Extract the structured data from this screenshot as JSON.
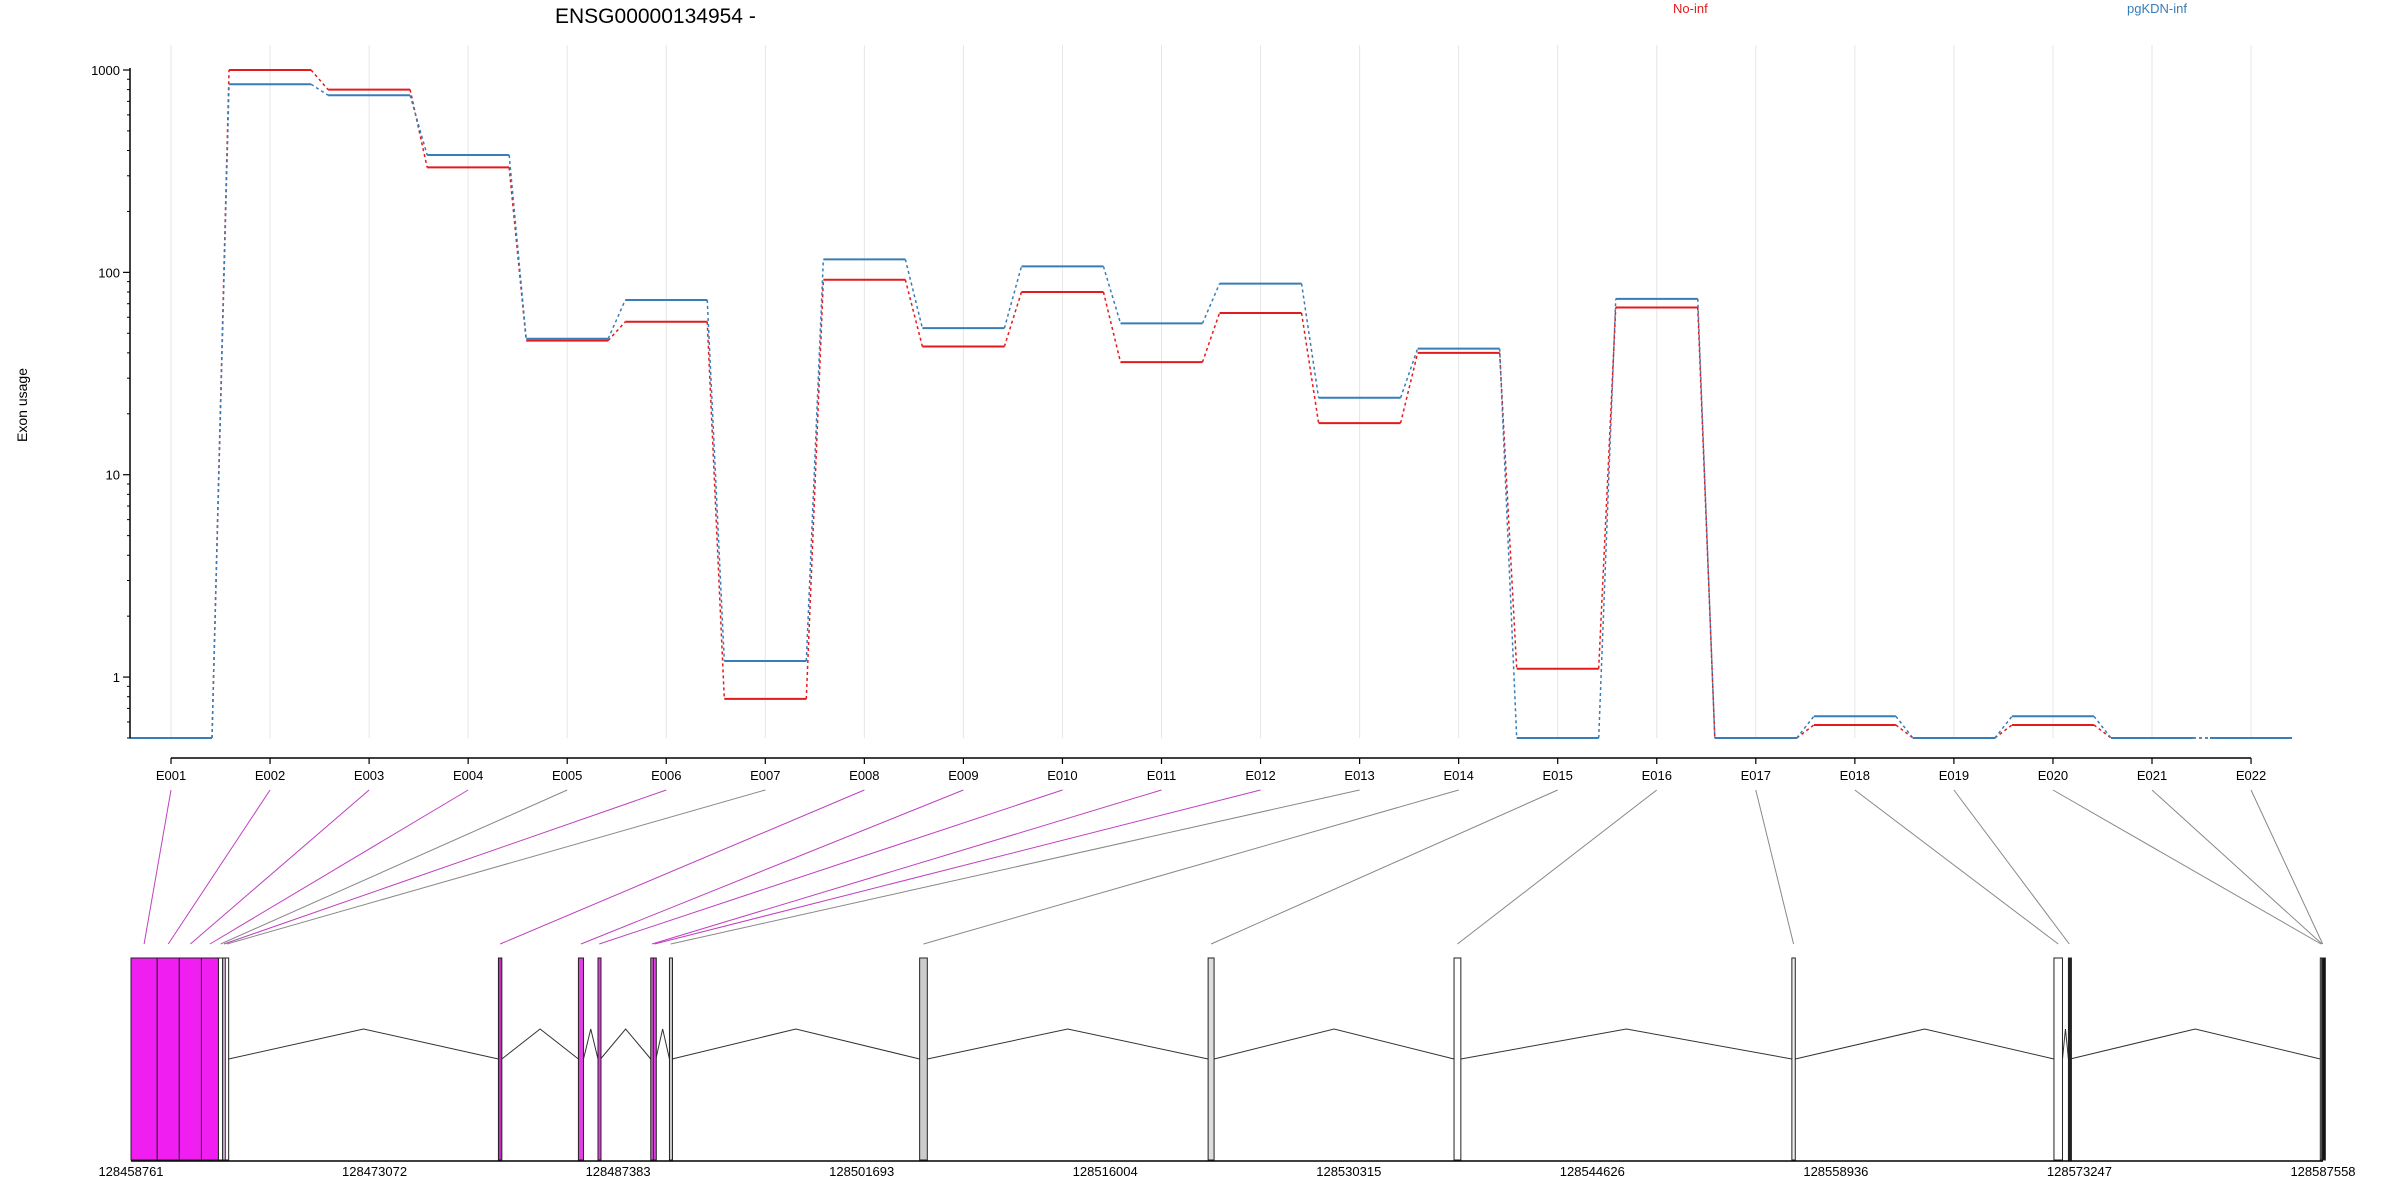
{
  "chart_data": {
    "type": "line",
    "title": "ENSG00000134954 -",
    "ylabel": "Exon usage",
    "y_scale": "log",
    "ylim": [
      0.5,
      1000
    ],
    "y_ticks": [
      "1000",
      "100",
      "10",
      "1"
    ],
    "categories": [
      "E001",
      "E002",
      "E003",
      "E004",
      "E005",
      "E006",
      "E007",
      "E008",
      "E009",
      "E010",
      "E011",
      "E012",
      "E013",
      "E014",
      "E015",
      "E016",
      "E017",
      "E018",
      "E019",
      "E020",
      "E021",
      "E022"
    ],
    "series": [
      {
        "name": "No-inf",
        "color": "#e41a1c",
        "values": [
          0.5,
          1000,
          800,
          330,
          46,
          57,
          0.78,
          92,
          43,
          80,
          36,
          63,
          18,
          40,
          1.1,
          67,
          0.5,
          0.58,
          0.5,
          0.58,
          0.5,
          0.5
        ]
      },
      {
        "name": "pgKDN-inf",
        "color": "#377eb8",
        "values": [
          0.5,
          850,
          750,
          380,
          47,
          73,
          1.2,
          116,
          53,
          107,
          56,
          88,
          24,
          42,
          0.5,
          74,
          0.5,
          0.64,
          0.5,
          0.64,
          0.5,
          0.5
        ]
      }
    ],
    "genomic_axis": {
      "tick_labels": [
        "128458761",
        "128473072",
        "128487383",
        "128501693",
        "128516004",
        "128530315",
        "128544626",
        "128558936",
        "128573247",
        "128587558"
      ],
      "range": [
        128458761,
        128587558
      ]
    },
    "gene_model": {
      "exons": [
        {
          "id": "E001",
          "start": 128458761,
          "end": 128460300,
          "fill": "#f01ef0"
        },
        {
          "id": "E002",
          "start": 128460300,
          "end": 128461600,
          "fill": "#f01ef0"
        },
        {
          "id": "E003",
          "start": 128461600,
          "end": 128462900,
          "fill": "#f01ef0"
        },
        {
          "id": "E004",
          "start": 128462900,
          "end": 128463900,
          "fill": "#f01ef0"
        },
        {
          "id": "E005",
          "start": 128463900,
          "end": 128464150,
          "fill": "#ffffff"
        },
        {
          "id": "E006",
          "start": 128464150,
          "end": 128464300,
          "fill": "#ebc4eb"
        },
        {
          "id": "E007",
          "start": 128464300,
          "end": 128464500,
          "fill": "#ffffff"
        },
        {
          "id": "E008",
          "start": 128480350,
          "end": 128480550,
          "fill": "#c030c0"
        },
        {
          "id": "E009",
          "start": 128485050,
          "end": 128485350,
          "fill": "#e040e0"
        },
        {
          "id": "E010",
          "start": 128486200,
          "end": 128486350,
          "fill": "#e040e0"
        },
        {
          "id": "E011",
          "start": 128489300,
          "end": 128489450,
          "fill": "#d060d0"
        },
        {
          "id": "E012",
          "start": 128489450,
          "end": 128489600,
          "fill": "#e040e0"
        },
        {
          "id": "E013",
          "start": 128490400,
          "end": 128490550,
          "fill": "#cccccc"
        },
        {
          "id": "E014",
          "start": 128505100,
          "end": 128505550,
          "fill": "#cccccc"
        },
        {
          "id": "E015",
          "start": 128522050,
          "end": 128522400,
          "fill": "#dddddd"
        },
        {
          "id": "E016",
          "start": 128536500,
          "end": 128536900,
          "fill": "#ffffff"
        },
        {
          "id": "E017",
          "start": 128556350,
          "end": 128556550,
          "fill": "#eeeeee"
        },
        {
          "id": "E018",
          "start": 128571750,
          "end": 128572250,
          "fill": "#ffffff"
        },
        {
          "id": "E019",
          "start": 128572600,
          "end": 128572700,
          "fill": "#222222"
        },
        {
          "id": "E020",
          "start": 128587400,
          "end": 128587480,
          "fill": "#ffffff"
        },
        {
          "id": "E021",
          "start": 128587480,
          "end": 128587520,
          "fill": "#ffffff"
        },
        {
          "id": "E022",
          "start": 128587520,
          "end": 128587558,
          "fill": "#111111"
        }
      ]
    }
  }
}
